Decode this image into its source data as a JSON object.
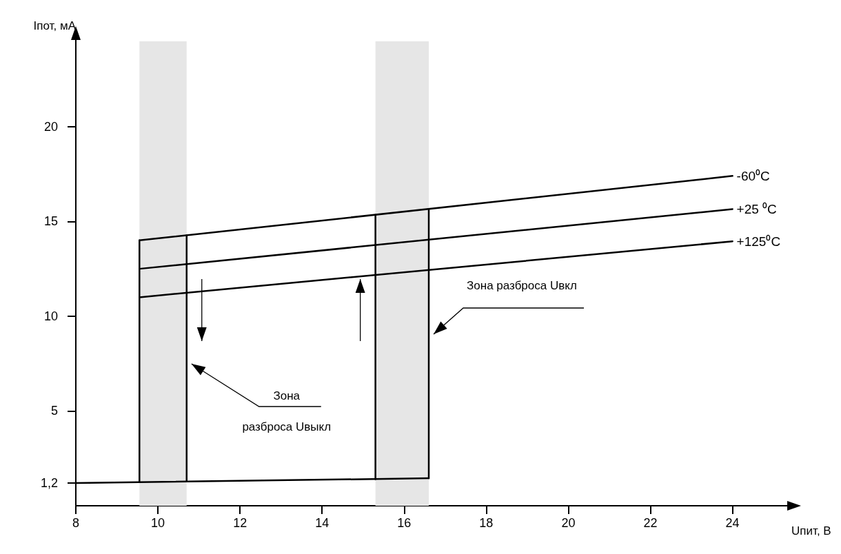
{
  "chart_data": {
    "type": "line",
    "xlabel": "Uпит, В",
    "ylabel": "Iпот, мА",
    "xlim": [
      8,
      25.3
    ],
    "xticks": [
      8,
      10,
      12,
      14,
      16,
      18,
      20,
      22,
      24
    ],
    "ylim": [
      0,
      24.5
    ],
    "yticks": [
      {
        "value": 1.2,
        "label": "1,2"
      },
      5,
      10,
      15,
      20
    ],
    "grid": false,
    "legend": false,
    "marker": "none",
    "line_style": "solid",
    "series": [
      {
        "name": "-60⁰C",
        "color": "#000000",
        "x": [
          9.55,
          24
        ],
        "values": [
          14.0,
          17.4
        ]
      },
      {
        "name": "+25 ⁰C",
        "color": "#000000",
        "x": [
          9.55,
          24
        ],
        "values": [
          12.5,
          15.65
        ]
      },
      {
        "name": "+125⁰C",
        "color": "#000000",
        "x": [
          9.55,
          24
        ],
        "values": [
          11.0,
          13.95
        ]
      },
      {
        "color": "#000000",
        "x": [
          8,
          16.6
        ],
        "values": [
          1.2,
          1.45
        ]
      },
      {
        "color": "#000000",
        "x": [
          9.55,
          9.55
        ],
        "values": [
          1.25,
          14.0
        ]
      },
      {
        "color": "#000000",
        "x": [
          10.7,
          10.7
        ],
        "values": [
          1.3,
          14.27
        ]
      },
      {
        "color": "#000000",
        "x": [
          15.3,
          15.3
        ],
        "values": [
          1.4,
          15.35
        ]
      },
      {
        "color": "#000000",
        "x": [
          16.6,
          16.6
        ],
        "values": [
          1.45,
          15.66
        ]
      }
    ],
    "bands": [
      {
        "axis": "x",
        "from": 9.55,
        "to": 10.7
      },
      {
        "axis": "x",
        "from": 15.3,
        "to": 16.6
      }
    ],
    "annotations": [
      "Зона разброса Uвкл",
      "Зона",
      "разброса Uвыкл"
    ]
  }
}
